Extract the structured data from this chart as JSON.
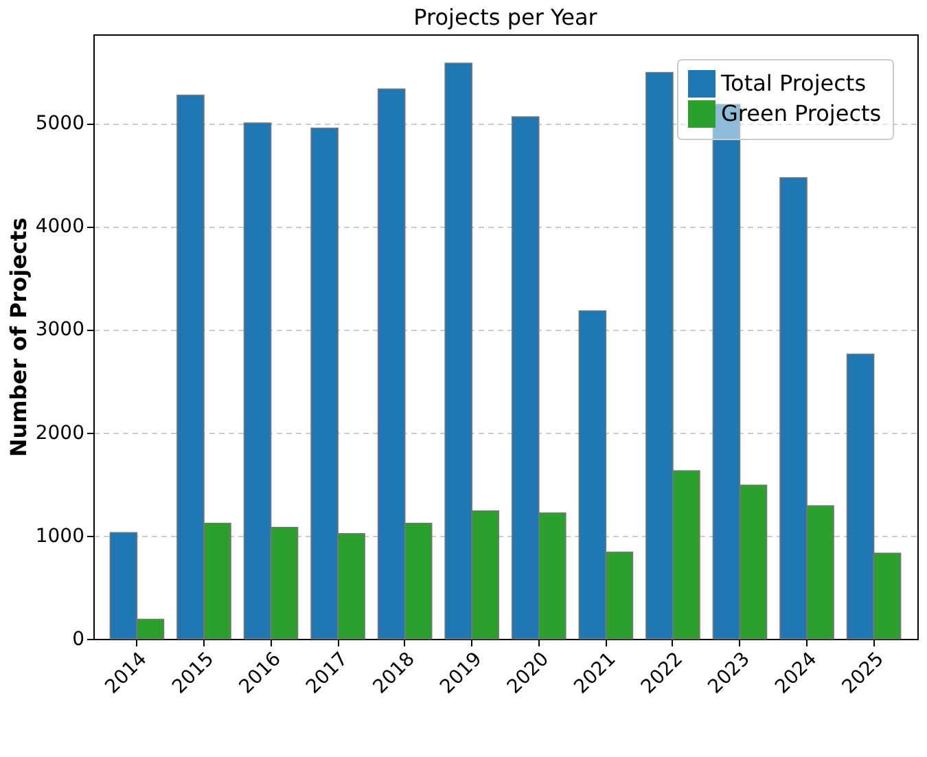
{
  "chart_data": {
    "type": "bar",
    "title": "Projects per Year",
    "ylabel": "Number of Projects",
    "categories": [
      "2014",
      "2015",
      "2016",
      "2017",
      "2018",
      "2019",
      "2020",
      "2021",
      "2022",
      "2023",
      "2024",
      "2025"
    ],
    "series": [
      {
        "name": "Total Projects",
        "color": "#1f77b4",
        "values": [
          1030,
          5270,
          5000,
          4950,
          5330,
          5580,
          5060,
          3180,
          5490,
          5180,
          4470,
          2760
        ]
      },
      {
        "name": "Green Projects",
        "color": "#2ca02c",
        "values": [
          190,
          1120,
          1080,
          1020,
          1120,
          1240,
          1220,
          840,
          1630,
          1490,
          1290,
          830
        ]
      }
    ],
    "ylim": [
      0,
      5860
    ],
    "yticks": [
      0,
      1000,
      2000,
      3000,
      4000,
      5000
    ],
    "grid": "y",
    "legend": "top right"
  }
}
